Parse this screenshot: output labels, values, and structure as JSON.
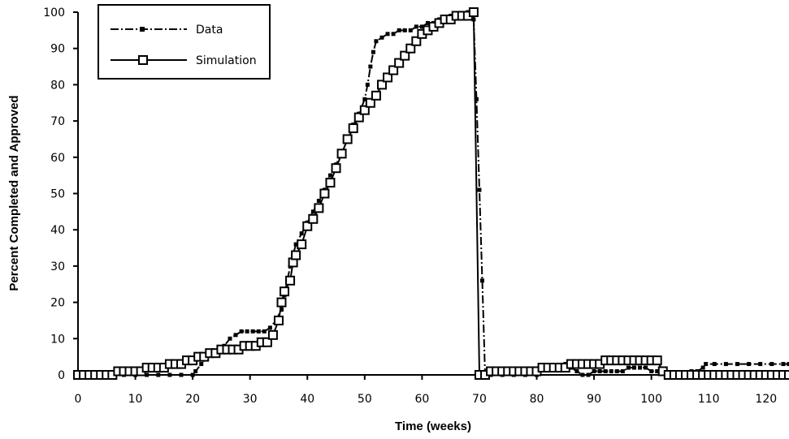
{
  "chart_data": {
    "type": "line",
    "title": "",
    "xlabel": "Time (weeks)",
    "ylabel": "Percent Completed and Approved",
    "xlim": [
      0,
      124
    ],
    "ylim": [
      0,
      100
    ],
    "x_ticks": [
      0,
      10,
      20,
      30,
      40,
      50,
      60,
      70,
      80,
      90,
      100,
      110,
      120
    ],
    "y_ticks": [
      0,
      10,
      20,
      30,
      40,
      50,
      60,
      70,
      80,
      90,
      100
    ],
    "grid": false,
    "legend_position": "top-left",
    "series": [
      {
        "name": "Data",
        "line_style": "dash-dot",
        "marker": "small-square-filled",
        "color": "#000000",
        "points": [
          [
            0,
            0
          ],
          [
            2,
            0
          ],
          [
            4,
            0
          ],
          [
            6,
            0
          ],
          [
            8,
            0
          ],
          [
            10,
            0
          ],
          [
            12,
            0
          ],
          [
            14,
            0
          ],
          [
            16,
            0
          ],
          [
            18,
            0
          ],
          [
            20,
            0
          ],
          [
            20.5,
            1
          ],
          [
            21.5,
            3
          ],
          [
            22.5,
            5
          ],
          [
            23.5,
            6
          ],
          [
            24.5,
            7
          ],
          [
            25.5,
            8
          ],
          [
            26.5,
            10
          ],
          [
            27.5,
            11
          ],
          [
            28.5,
            12
          ],
          [
            29.5,
            12
          ],
          [
            30.5,
            12
          ],
          [
            31.5,
            12
          ],
          [
            32.5,
            12
          ],
          [
            33.5,
            13
          ],
          [
            34.5,
            15
          ],
          [
            35.5,
            18
          ],
          [
            36,
            22
          ],
          [
            36.5,
            26
          ],
          [
            37,
            30
          ],
          [
            37.5,
            33
          ],
          [
            38,
            36
          ],
          [
            39,
            39
          ],
          [
            40,
            42
          ],
          [
            41,
            45
          ],
          [
            42,
            48
          ],
          [
            43,
            51
          ],
          [
            44,
            55
          ],
          [
            45,
            58
          ],
          [
            46,
            61
          ],
          [
            47,
            65
          ],
          [
            48,
            69
          ],
          [
            49,
            72
          ],
          [
            50,
            76
          ],
          [
            50.5,
            80
          ],
          [
            51,
            85
          ],
          [
            51.5,
            89
          ],
          [
            52,
            92
          ],
          [
            53,
            93
          ],
          [
            54,
            94
          ],
          [
            55,
            94
          ],
          [
            56,
            95
          ],
          [
            57,
            95
          ],
          [
            58,
            95
          ],
          [
            59,
            96
          ],
          [
            60,
            96
          ],
          [
            61,
            97
          ],
          [
            62,
            97
          ],
          [
            63,
            98
          ],
          [
            64,
            98
          ],
          [
            65,
            99
          ],
          [
            66,
            99
          ],
          [
            67,
            99
          ],
          [
            68,
            100
          ],
          [
            68.5,
            100
          ],
          [
            69,
            98
          ],
          [
            69.5,
            76
          ],
          [
            70,
            51
          ],
          [
            70.5,
            26
          ],
          [
            71,
            0
          ],
          [
            72,
            0
          ],
          [
            74,
            0
          ],
          [
            76,
            0
          ],
          [
            78,
            0
          ],
          [
            80,
            0
          ],
          [
            80.5,
            2
          ],
          [
            82,
            2
          ],
          [
            84,
            2
          ],
          [
            85,
            3
          ],
          [
            86,
            2
          ],
          [
            87,
            1
          ],
          [
            88,
            0
          ],
          [
            89,
            0
          ],
          [
            90,
            1
          ],
          [
            91,
            1
          ],
          [
            92,
            1
          ],
          [
            93,
            1
          ],
          [
            94,
            1
          ],
          [
            95,
            1
          ],
          [
            96,
            2
          ],
          [
            97,
            2
          ],
          [
            98,
            2
          ],
          [
            99,
            2
          ],
          [
            100,
            1
          ],
          [
            101,
            1
          ],
          [
            102,
            1
          ],
          [
            103,
            0
          ],
          [
            104,
            0
          ],
          [
            105,
            0
          ],
          [
            106,
            0
          ],
          [
            107,
            1
          ],
          [
            108,
            1
          ],
          [
            109,
            2
          ],
          [
            109.5,
            3
          ],
          [
            111,
            3
          ],
          [
            113,
            3
          ],
          [
            115,
            3
          ],
          [
            117,
            3
          ],
          [
            119,
            3
          ],
          [
            121,
            3
          ],
          [
            123,
            3
          ],
          [
            124,
            3
          ]
        ]
      },
      {
        "name": "Simulation",
        "line_style": "solid",
        "marker": "open-square",
        "color": "#000000",
        "points": [
          [
            0,
            0
          ],
          [
            1,
            0
          ],
          [
            2,
            0
          ],
          [
            3,
            0
          ],
          [
            4,
            0
          ],
          [
            5,
            0
          ],
          [
            6,
            0
          ],
          [
            7,
            1
          ],
          [
            8,
            1
          ],
          [
            9,
            1
          ],
          [
            10,
            1
          ],
          [
            11,
            1
          ],
          [
            12,
            2
          ],
          [
            13,
            2
          ],
          [
            14,
            2
          ],
          [
            15,
            2
          ],
          [
            16,
            3
          ],
          [
            17,
            3
          ],
          [
            18,
            3
          ],
          [
            19,
            4
          ],
          [
            20,
            4
          ],
          [
            21,
            5
          ],
          [
            22,
            5
          ],
          [
            23,
            6
          ],
          [
            24,
            6
          ],
          [
            25,
            7
          ],
          [
            26,
            7
          ],
          [
            27,
            7
          ],
          [
            28,
            7
          ],
          [
            29,
            8
          ],
          [
            30,
            8
          ],
          [
            31,
            8
          ],
          [
            32,
            9
          ],
          [
            33,
            9
          ],
          [
            34,
            11
          ],
          [
            35,
            15
          ],
          [
            35.5,
            20
          ],
          [
            36,
            23
          ],
          [
            37,
            26
          ],
          [
            37.5,
            31
          ],
          [
            38,
            33
          ],
          [
            39,
            36
          ],
          [
            40,
            41
          ],
          [
            41,
            43
          ],
          [
            42,
            46
          ],
          [
            43,
            50
          ],
          [
            44,
            53
          ],
          [
            45,
            57
          ],
          [
            46,
            61
          ],
          [
            47,
            65
          ],
          [
            48,
            68
          ],
          [
            49,
            71
          ],
          [
            50,
            73
          ],
          [
            51,
            75
          ],
          [
            52,
            77
          ],
          [
            53,
            80
          ],
          [
            54,
            82
          ],
          [
            55,
            84
          ],
          [
            56,
            86
          ],
          [
            57,
            88
          ],
          [
            58,
            90
          ],
          [
            59,
            92
          ],
          [
            60,
            94
          ],
          [
            61,
            95
          ],
          [
            62,
            96
          ],
          [
            63,
            97
          ],
          [
            64,
            98
          ],
          [
            65,
            98
          ],
          [
            66,
            99
          ],
          [
            67,
            99
          ],
          [
            68,
            99
          ],
          [
            69,
            100
          ],
          [
            70,
            0
          ],
          [
            71,
            0
          ],
          [
            72,
            1
          ],
          [
            73,
            1
          ],
          [
            74,
            1
          ],
          [
            75,
            1
          ],
          [
            76,
            1
          ],
          [
            77,
            1
          ],
          [
            78,
            1
          ],
          [
            79,
            1
          ],
          [
            80,
            1
          ],
          [
            81,
            2
          ],
          [
            82,
            2
          ],
          [
            83,
            2
          ],
          [
            84,
            2
          ],
          [
            85,
            2
          ],
          [
            86,
            3
          ],
          [
            87,
            3
          ],
          [
            88,
            3
          ],
          [
            89,
            3
          ],
          [
            90,
            3
          ],
          [
            91,
            3
          ],
          [
            92,
            4
          ],
          [
            93,
            4
          ],
          [
            94,
            4
          ],
          [
            95,
            4
          ],
          [
            96,
            4
          ],
          [
            97,
            4
          ],
          [
            98,
            4
          ],
          [
            99,
            4
          ],
          [
            100,
            4
          ],
          [
            101,
            4
          ],
          [
            102,
            1
          ],
          [
            103,
            0
          ],
          [
            104,
            0
          ],
          [
            105,
            0
          ],
          [
            106,
            0
          ],
          [
            107,
            0
          ],
          [
            108,
            0
          ],
          [
            109,
            0
          ],
          [
            110,
            0
          ],
          [
            111,
            0
          ],
          [
            112,
            0
          ],
          [
            113,
            0
          ],
          [
            114,
            0
          ],
          [
            115,
            0
          ],
          [
            116,
            0
          ],
          [
            117,
            0
          ],
          [
            118,
            0
          ],
          [
            119,
            0
          ],
          [
            120,
            0
          ],
          [
            121,
            0
          ],
          [
            122,
            0
          ],
          [
            123,
            0
          ],
          [
            124,
            0
          ]
        ]
      }
    ]
  }
}
